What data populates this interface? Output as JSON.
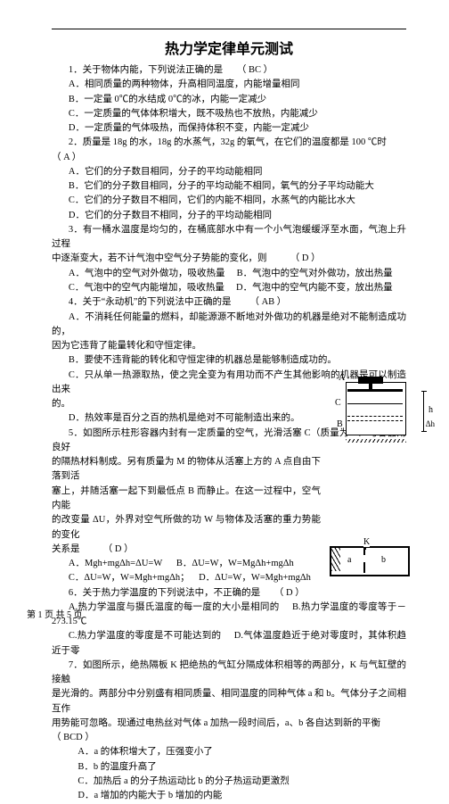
{
  "title": "热力学定律单元测试",
  "footer": "第 1 页 共 5 页",
  "q1": {
    "stem": "1．关于物体内能，下列说法正确的是",
    "ans": "（ BC ）",
    "A": "A．相同质量的两种物体，升高相同温度，内能增量相同",
    "B": "B．一定量 0℃的水结成 0℃的冰，内能一定减少",
    "C": "C．一定质量的气体体积增大，既不吸热也不放热，内能减少",
    "D": "D．一定质量的气体吸热，而保持体积不变，内能一定减少"
  },
  "q2": {
    "stem_a": "2．质量是 18g 的水，18g 的水蒸气，32g 的氧气，在它们的温度都是 100 ℃时",
    "stem_b": "（ A ）",
    "A": "A．它们的分子数目相同，分子的平均动能相同",
    "B": "B．它们的分子数目相同，分子的平均动能不相同，氧气的分子平均动能大",
    "C": "C．它们的分子数目不相同，它们的内能不相同，水蒸气的内能比水大",
    "D": "D．它们的分子数目不相同，分子的平均动能相同"
  },
  "q3": {
    "stem_a": "3．有一桶水温度是均匀的，在桶底部水中有一个小气泡缓缓浮至水面，气泡上升过程",
    "stem_b": "中逐渐变大，若不计气泡中空气分子势能的变化，则",
    "ans": "（ D ）",
    "A": "A．气泡中的空气对外做功，吸收热量",
    "B": "B．气泡中的空气对外做功，放出热量",
    "C": "C．气泡中的空气内能增加，吸收热量",
    "D": "D．气泡中的空气内能不变，放出热量"
  },
  "q4": {
    "stem": "4．关于“永动机”的下列说法中正确的是",
    "ans": "（ AB ）",
    "A_a": "A．不消耗任何能量的燃料，却能源源不断地对外做功的机器是绝对不能制造成功的，",
    "A_b": "因为它违背了能量转化和守恒定律。",
    "B": "B．要使不违背能的转化和守恒定律的机器总是能够制造成功的。",
    "C_a": "C．只从单一热源取热，使之完全变为有用功而不产生其他影响的机器是可以制造出来",
    "C_b": "的。",
    "D": "D．热效率是百分之百的热机是绝对不可能制造出来的。"
  },
  "q5": {
    "stem_a": "5．如图所示柱形容器内封有一定质量的空气，光滑活塞 C（质量为 m）与容器用良好",
    "stem_b": "的隔热材料制成。另有质量为 M 的物体从活塞上方的 A 点自由下落到活",
    "stem_c": "塞上，并随活塞一起下到最低点 B 而静止。在这一过程中，空气内能",
    "stem_d": "的改变量 ΔU，外界对空气所做的功 W 与物体及活塞的重力势能的变化",
    "stem_e": "关系是",
    "ans": "（ D ）",
    "A": "A．Mgh+mgΔh=ΔU=W",
    "B": "B．ΔU=W，W=MgΔh+mgΔh",
    "C": "C．ΔU=W，W=Mgh+mgΔh；",
    "D": "D．ΔU=W，W=Mgh+mgΔh"
  },
  "q6": {
    "stem": "6．关于热力学温度的下列说法中，不正确的是",
    "ans": "（ D ）",
    "A": "A.热力学温度与摄氏温度的每一度的大小是相同的",
    "B": "B.热力学温度的零度等于－273.15℃",
    "C": "C.热力学温度的零度是不可能达到的",
    "D": "D.气体温度趋近于绝对零度时，其体积趋近于零"
  },
  "q7": {
    "stem_a": "7．如图所示，绝热隔板 K 把绝热的气缸分隔成体积相等的两部分，K 与气缸壁的接触",
    "stem_b": "是光滑的。两部分中分别盛有相同质量、相同温度的同种气体 a 和 b。气体分子之间相互作",
    "stem_c": "用势能可忽略。现通过电热丝对气体 a 加热一段时间后，a、b 各自达到新的平衡",
    "ans": "（ BCD ）",
    "A": "A．a 的体积增大了，压强变小了",
    "B": "B．b 的温度升高了",
    "C": "C．加热后 a 的分子热运动比 b 的分子热运动更激烈",
    "D": "D．a 增加的内能大于 b 增加的内能"
  },
  "fig1": {
    "A": "A",
    "B": "B",
    "C": "C",
    "h": "h",
    "dh": "Δh"
  },
  "fig2": {
    "K": "K",
    "a": "a",
    "b": "b"
  }
}
